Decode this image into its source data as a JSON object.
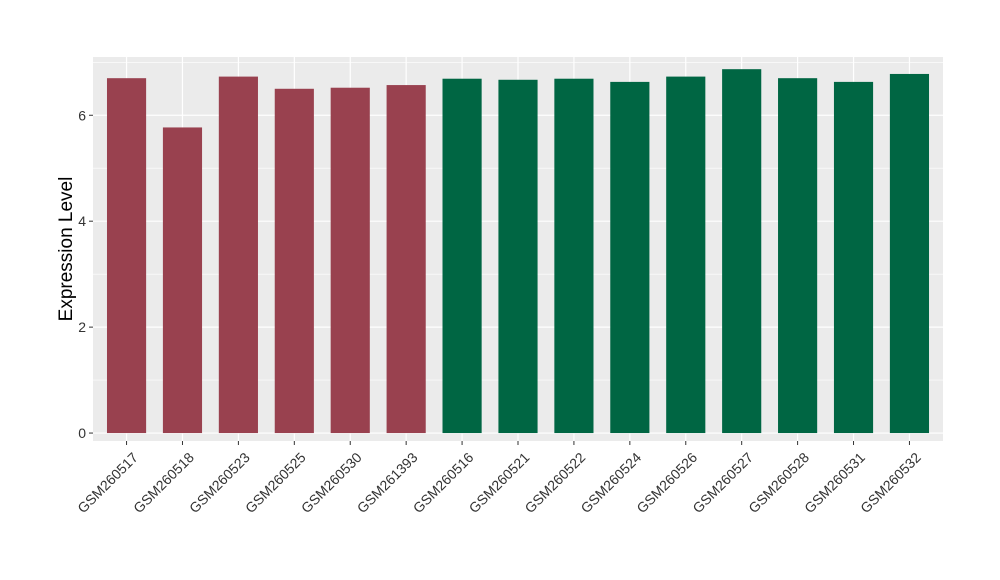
{
  "chart_data": {
    "type": "bar",
    "title": "",
    "xlabel": "",
    "ylabel": "Expression Level",
    "ylim": [
      -0.15,
      7.1
    ],
    "yticks": [
      0,
      2,
      4,
      6
    ],
    "grid": true,
    "legend": "none",
    "categories": [
      "GSM260517",
      "GSM260518",
      "GSM260523",
      "GSM260525",
      "GSM260530",
      "GSM261393",
      "GSM260516",
      "GSM260521",
      "GSM260522",
      "GSM260524",
      "GSM260526",
      "GSM260527",
      "GSM260528",
      "GSM260531",
      "GSM260532"
    ],
    "values": [
      6.7,
      5.77,
      6.73,
      6.5,
      6.52,
      6.57,
      6.69,
      6.67,
      6.69,
      6.63,
      6.73,
      6.87,
      6.7,
      6.63,
      6.78
    ],
    "group_colors": [
      "#99414f",
      "#99414f",
      "#99414f",
      "#99414f",
      "#99414f",
      "#99414f",
      "#006643",
      "#006643",
      "#006643",
      "#006643",
      "#006643",
      "#006643",
      "#006643",
      "#006643",
      "#006643"
    ],
    "panel_background": "#ebebeb",
    "grid_color": "#ffffff"
  }
}
